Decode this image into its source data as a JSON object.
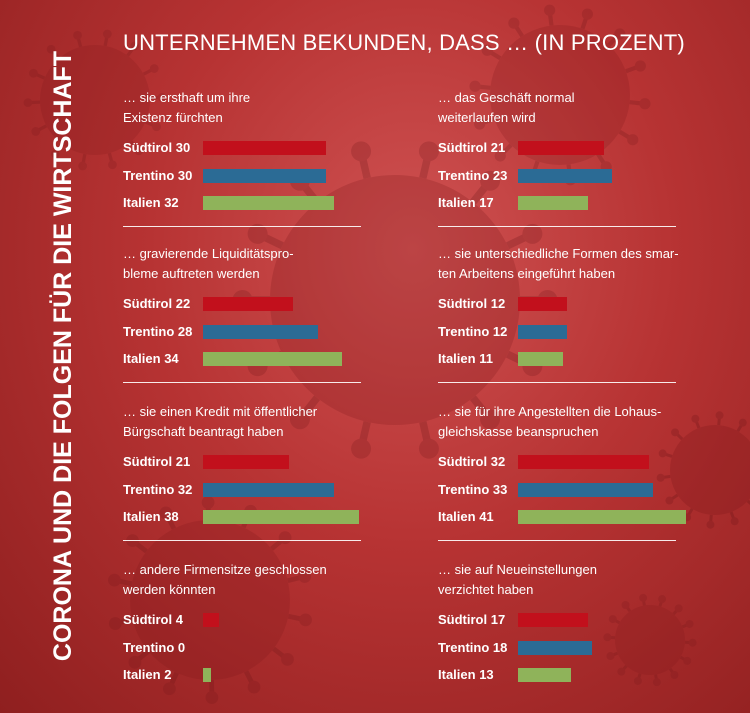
{
  "main_title": "UNTERNEHMEN BEKUNDEN, DASS … (IN PROZENT)",
  "side_title": "CORONA UND DIE FOLGEN FÜR DIE WIRTSCHAFT",
  "colors": {
    "Südtirol": "#c2101c",
    "Trentino": "#2b6b95",
    "Italien": "#8fb35a"
  },
  "chart_data": {
    "type": "bar",
    "orientation": "horizontal",
    "regions": [
      "Südtirol",
      "Trentino",
      "Italien"
    ],
    "panels": [
      {
        "question": [
          "… sie ersthaft um ihre",
          "Existenz fürchten"
        ],
        "rows": [
          {
            "name": "Südtirol",
            "value": 30
          },
          {
            "name": "Trentino",
            "value": 30
          },
          {
            "name": "Italien",
            "value": 32
          }
        ]
      },
      {
        "question": [
          "… das Geschäft normal",
          "weiterlaufen wird"
        ],
        "rows": [
          {
            "name": "Südtirol",
            "value": 21
          },
          {
            "name": "Trentino",
            "value": 23
          },
          {
            "name": "Italien",
            "value": 17
          }
        ]
      },
      {
        "question": [
          "… gravierende Liquiditätspro-",
          "bleme auftreten werden"
        ],
        "rows": [
          {
            "name": "Südtirol",
            "value": 22
          },
          {
            "name": "Trentino",
            "value": 28
          },
          {
            "name": "Italien",
            "value": 34
          }
        ]
      },
      {
        "question": [
          "… sie unterschiedliche Formen des smar-",
          "ten Arbeitens eingeführt haben"
        ],
        "rows": [
          {
            "name": "Südtirol",
            "value": 12
          },
          {
            "name": "Trentino",
            "value": 12
          },
          {
            "name": "Italien",
            "value": 11
          }
        ]
      },
      {
        "question": [
          "… sie einen Kredit mit öffentlicher",
          "Bürgschaft beantragt haben"
        ],
        "rows": [
          {
            "name": "Südtirol",
            "value": 21
          },
          {
            "name": "Trentino",
            "value": 32
          },
          {
            "name": "Italien",
            "value": 38
          }
        ]
      },
      {
        "question": [
          "… sie für ihre Angestellten die Lohaus-",
          "gleichskasse beanspruchen"
        ],
        "rows": [
          {
            "name": "Südtirol",
            "value": 32
          },
          {
            "name": "Trentino",
            "value": 33
          },
          {
            "name": "Italien",
            "value": 41
          }
        ]
      },
      {
        "question": [
          "… andere Firmensitze geschlossen",
          "werden könnten"
        ],
        "rows": [
          {
            "name": "Südtirol",
            "value": 4
          },
          {
            "name": "Trentino",
            "value": 0
          },
          {
            "name": "Italien",
            "value": 2
          }
        ]
      },
      {
        "question": [
          "… sie auf Neueinstellungen",
          "verzichtet haben"
        ],
        "rows": [
          {
            "name": "Südtirol",
            "value": 17
          },
          {
            "name": "Trentino",
            "value": 18
          },
          {
            "name": "Italien",
            "value": 13
          }
        ]
      }
    ]
  }
}
